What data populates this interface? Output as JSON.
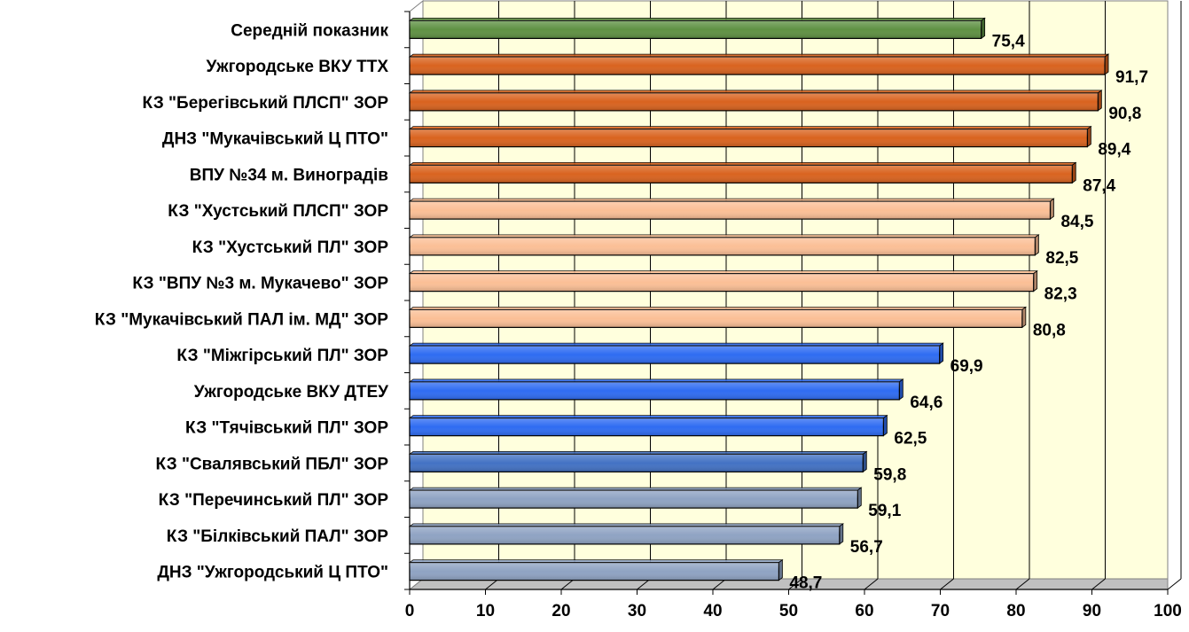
{
  "chart_data": {
    "type": "bar",
    "orientation": "horizontal",
    "categories": [
      "Середній показник",
      "Ужгородське ВКУ ТТХ",
      "КЗ \"Берегівський ПЛСП\" ЗОР",
      "ДНЗ \"Мукачівський Ц ПТО\"",
      "ВПУ №34 м. Виноградів",
      "КЗ \"Хустський ПЛСП\" ЗОР",
      "КЗ \"Хустський ПЛ\" ЗОР",
      "КЗ \"ВПУ №3 м. Мукачево\" ЗОР",
      "КЗ \"Мукачівський ПАЛ ім. МД\" ЗОР",
      "КЗ \"Міжгірський ПЛ\" ЗОР",
      "Ужгородське ВКУ ДТЕУ",
      "КЗ \"Тячівський ПЛ\" ЗОР",
      "КЗ \"Свалявський ПБЛ\" ЗОР",
      "КЗ \"Перечинський ПЛ\" ЗОР",
      "КЗ \"Білківський ПАЛ\" ЗОР",
      "ДНЗ \"Ужгородський Ц ПТО\""
    ],
    "values": [
      75.4,
      91.7,
      90.8,
      89.4,
      87.4,
      84.5,
      82.5,
      82.3,
      80.8,
      69.9,
      64.6,
      62.5,
      59.8,
      59.1,
      56.7,
      48.7
    ],
    "data_labels": [
      "75,4",
      "91,7",
      "90,8",
      "89,4",
      "87,4",
      "84,5",
      "82,5",
      "82,3",
      "80,8",
      "69,9",
      "64,6",
      "62,5",
      "59,8",
      "59,1",
      "56,7",
      "48,7"
    ],
    "bar_colors": [
      "#5f9143",
      "#d9631f",
      "#d9631f",
      "#d9631f",
      "#d9631f",
      "#fbbf96",
      "#fbbf96",
      "#fbbf96",
      "#fbbf96",
      "#2f6cf2",
      "#2f6cf2",
      "#2f6cf2",
      "#4372c4",
      "#8fa3c3",
      "#8fa3c3",
      "#8fa3c3"
    ],
    "xlim": [
      0,
      100
    ],
    "x_ticks": [
      0,
      10,
      20,
      30,
      40,
      50,
      60,
      70,
      80,
      90,
      100
    ],
    "grid": true,
    "title": "",
    "xlabel": "",
    "ylabel": "",
    "plot_background": "#ffffdd"
  }
}
